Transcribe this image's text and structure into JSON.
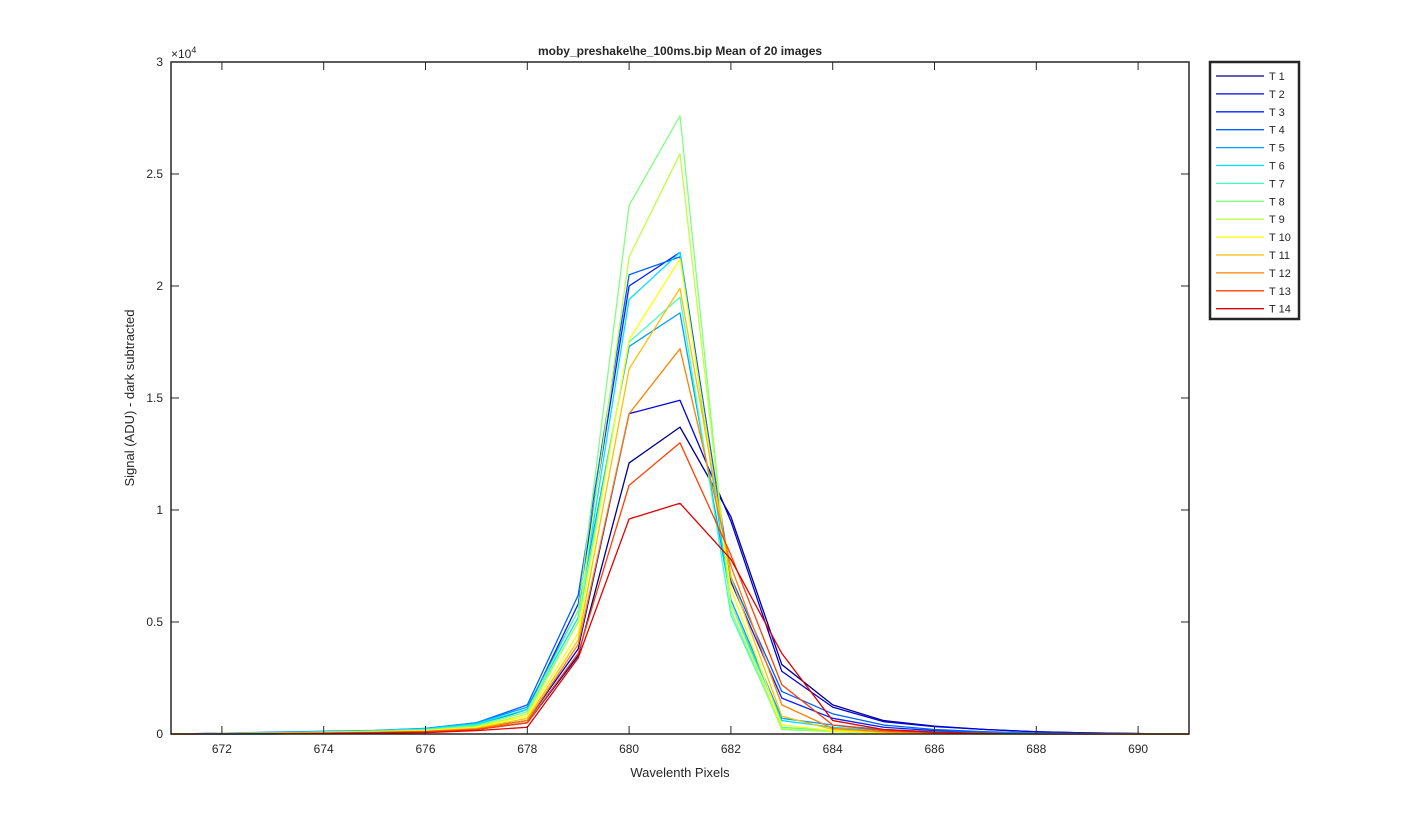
{
  "chart_data": {
    "type": "line",
    "title": "moby_preshake\\he_100ms.bip  Mean of 20 images",
    "xlabel": "Wavelenth Pixels",
    "ylabel": "Signal (ADU) - dark subtracted",
    "y_multiplier_label": "×10",
    "y_multiplier_exp": "4",
    "xlim": [
      671,
      691
    ],
    "ylim": [
      0,
      30000
    ],
    "xticks": [
      672,
      674,
      676,
      678,
      680,
      682,
      684,
      686,
      688,
      690
    ],
    "yticks": [
      0,
      5000,
      10000,
      15000,
      20000,
      25000,
      30000
    ],
    "ytick_labels": [
      "0",
      "0.5",
      "1",
      "1.5",
      "2",
      "2.5",
      "3"
    ],
    "grid": false,
    "legend_position": "outside-right-top",
    "x": [
      671,
      672,
      673,
      674,
      675,
      676,
      677,
      678,
      679,
      680,
      681,
      682,
      683,
      684,
      685,
      686,
      687,
      688,
      689,
      690,
      691
    ],
    "series": [
      {
        "name": "T 1",
        "color": "#00008f",
        "values": [
          0,
          0,
          0,
          20,
          40,
          100,
          200,
          500,
          3500,
          12100,
          13700,
          9700,
          3100,
          1300,
          600,
          350,
          200,
          100,
          50,
          20,
          0
        ]
      },
      {
        "name": "T 2",
        "color": "#0000df",
        "values": [
          0,
          0,
          0,
          30,
          60,
          120,
          250,
          600,
          3800,
          14300,
          14900,
          9500,
          2800,
          1200,
          550,
          330,
          200,
          100,
          50,
          20,
          0
        ]
      },
      {
        "name": "T 3",
        "color": "#0020ff",
        "values": [
          0,
          20,
          50,
          80,
          120,
          200,
          400,
          1100,
          5800,
          20000,
          21500,
          6800,
          1600,
          700,
          300,
          150,
          80,
          40,
          20,
          0,
          0
        ]
      },
      {
        "name": "T 4",
        "color": "#0060ff",
        "values": [
          0,
          40,
          80,
          120,
          160,
          250,
          500,
          1300,
          6200,
          20500,
          21300,
          7000,
          1900,
          900,
          400,
          200,
          100,
          50,
          20,
          0,
          0
        ]
      },
      {
        "name": "T 5",
        "color": "#00a0ff",
        "values": [
          0,
          30,
          70,
          100,
          150,
          250,
          500,
          1200,
          5500,
          17300,
          18800,
          6000,
          700,
          400,
          200,
          100,
          50,
          20,
          0,
          0,
          0
        ]
      },
      {
        "name": "T 6",
        "color": "#00e0ff",
        "values": [
          0,
          30,
          60,
          100,
          150,
          230,
          450,
          1100,
          5200,
          19400,
          21500,
          5800,
          600,
          300,
          150,
          80,
          40,
          20,
          0,
          0,
          0
        ]
      },
      {
        "name": "T 7",
        "color": "#40ffbf",
        "values": [
          0,
          20,
          50,
          90,
          130,
          200,
          400,
          1000,
          5000,
          17500,
          19500,
          5300,
          300,
          150,
          80,
          40,
          20,
          0,
          0,
          0,
          0
        ]
      },
      {
        "name": "T 8",
        "color": "#80ff80",
        "values": [
          0,
          20,
          40,
          80,
          120,
          180,
          350,
          1000,
          5500,
          23600,
          27600,
          5500,
          200,
          100,
          50,
          20,
          0,
          0,
          0,
          0,
          0
        ]
      },
      {
        "name": "T 9",
        "color": "#bfff40",
        "values": [
          0,
          20,
          40,
          70,
          100,
          160,
          300,
          900,
          5000,
          21300,
          25900,
          5800,
          250,
          100,
          50,
          20,
          0,
          0,
          0,
          0,
          0
        ]
      },
      {
        "name": "T 10",
        "color": "#ffff00",
        "values": [
          0,
          10,
          30,
          60,
          100,
          150,
          300,
          800,
          4500,
          17600,
          21200,
          6500,
          400,
          150,
          60,
          20,
          0,
          0,
          0,
          0,
          0
        ]
      },
      {
        "name": "T 11",
        "color": "#ffbf00",
        "values": [
          0,
          10,
          20,
          50,
          80,
          130,
          250,
          700,
          4200,
          16300,
          19900,
          7000,
          800,
          200,
          80,
          30,
          0,
          0,
          0,
          0,
          0
        ]
      },
      {
        "name": "T 12",
        "color": "#ff8000",
        "values": [
          0,
          10,
          20,
          40,
          70,
          110,
          220,
          600,
          4000,
          14300,
          17200,
          7500,
          1300,
          250,
          100,
          40,
          0,
          0,
          0,
          0,
          0
        ]
      },
      {
        "name": "T 13",
        "color": "#ff4000",
        "values": [
          0,
          10,
          20,
          40,
          60,
          100,
          200,
          500,
          3600,
          11100,
          13000,
          8000,
          2200,
          400,
          150,
          60,
          20,
          0,
          0,
          0,
          0
        ]
      },
      {
        "name": "T 14",
        "color": "#df0000",
        "values": [
          0,
          0,
          10,
          20,
          40,
          60,
          150,
          300,
          3400,
          9600,
          10300,
          7800,
          3600,
          600,
          200,
          80,
          30,
          0,
          0,
          0,
          0
        ]
      }
    ]
  }
}
